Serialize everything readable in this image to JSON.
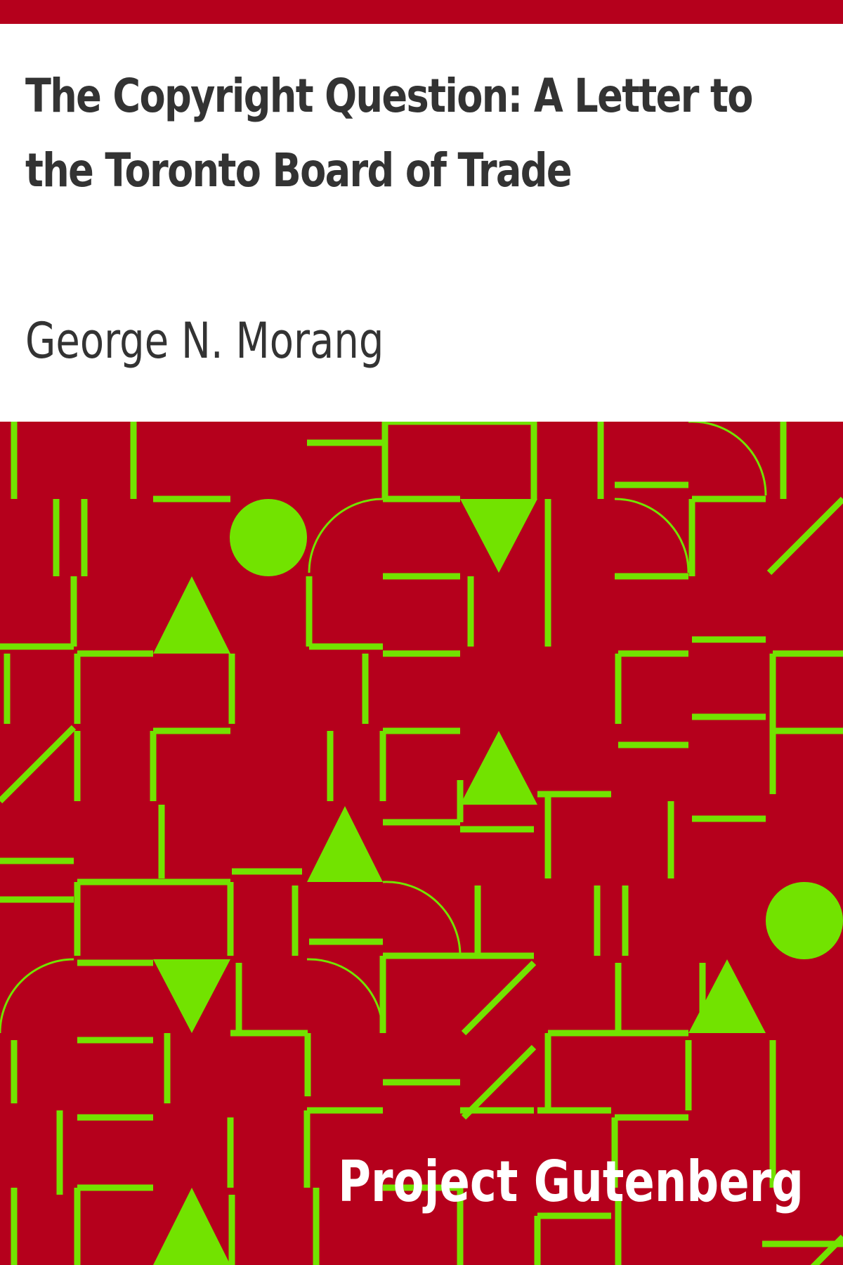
{
  "cover": {
    "title": "The Copyright Question: A Letter to the Toronto Board of Trade",
    "author": "George N. Morang",
    "publisher": "Project Gutenberg"
  },
  "colors": {
    "band": "#B5001C",
    "pattern_background": "#B5001C",
    "pattern_stroke": "#72E300",
    "title_text": "#333333",
    "publisher_text": "#FFFFFF"
  }
}
